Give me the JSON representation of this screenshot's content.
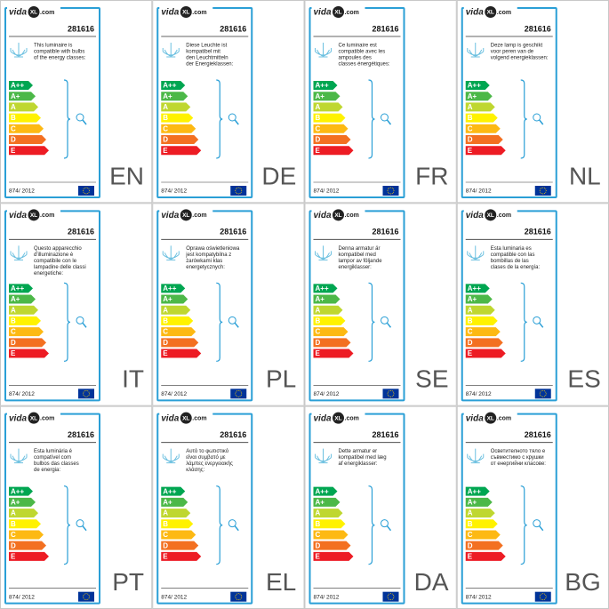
{
  "logo": {
    "left": "vida",
    "mark": "XL",
    "right": ".com"
  },
  "product_number": "281616",
  "regulation": "874/ 2012",
  "energy_classes": [
    "A++",
    "A+",
    "A",
    "B",
    "C",
    "D",
    "E"
  ],
  "class_colors": [
    "#00a651",
    "#4cb848",
    "#bfd730",
    "#fff200",
    "#fdb913",
    "#f37021",
    "#ed1c24"
  ],
  "labels": [
    {
      "code": "EN",
      "text": [
        "This luminaire is",
        "compatible with bulbs",
        "of the energy classes:"
      ]
    },
    {
      "code": "DE",
      "text": [
        "Diese Leuchte ist",
        "kompatibel mit",
        "den Leuchtmitteln",
        "der Energieklassen:"
      ]
    },
    {
      "code": "FR",
      "text": [
        "Ce luminaire est",
        "compatible avec les",
        "ampoules des",
        "classes énergétiques:"
      ]
    },
    {
      "code": "NL",
      "text": [
        "Deze lamp is geschikt",
        "voor peren van de",
        "volgend energieklassen:"
      ]
    },
    {
      "code": "IT",
      "text": [
        "Questo apparecchio",
        "d'illuminazione è",
        "compatibile con le",
        "lampadine delle classi",
        "energetiche:"
      ]
    },
    {
      "code": "PL",
      "text": [
        "Oprawa oświetleniowa",
        "jest kompatybilna z",
        "żarówkami klas",
        "energetycznych:"
      ]
    },
    {
      "code": "SE",
      "text": [
        "Denna armatur är",
        "kompatibel med",
        "lampor av följande",
        "energiklasser:"
      ]
    },
    {
      "code": "ES",
      "text": [
        "Esta luminaria es",
        "compatible con las",
        "bombillas de las",
        "clases de la energía:"
      ]
    },
    {
      "code": "PT",
      "text": [
        "Esta luminária é",
        "compatível com",
        "bulbos das classes",
        "de energia:"
      ]
    },
    {
      "code": "EL",
      "text": [
        "Αυτό το φωτιστικό",
        "είναι συμβατό με",
        "λάμπες ενεργειακής",
        "κλάσης:"
      ]
    },
    {
      "code": "DA",
      "text": [
        "Dette armatur er",
        "kompatibel med læg",
        "af energiklasser:"
      ]
    },
    {
      "code": "BG",
      "text": [
        "Осветителното тяло е",
        "съвместимо с крушки",
        "от енергийни класове:"
      ]
    }
  ]
}
